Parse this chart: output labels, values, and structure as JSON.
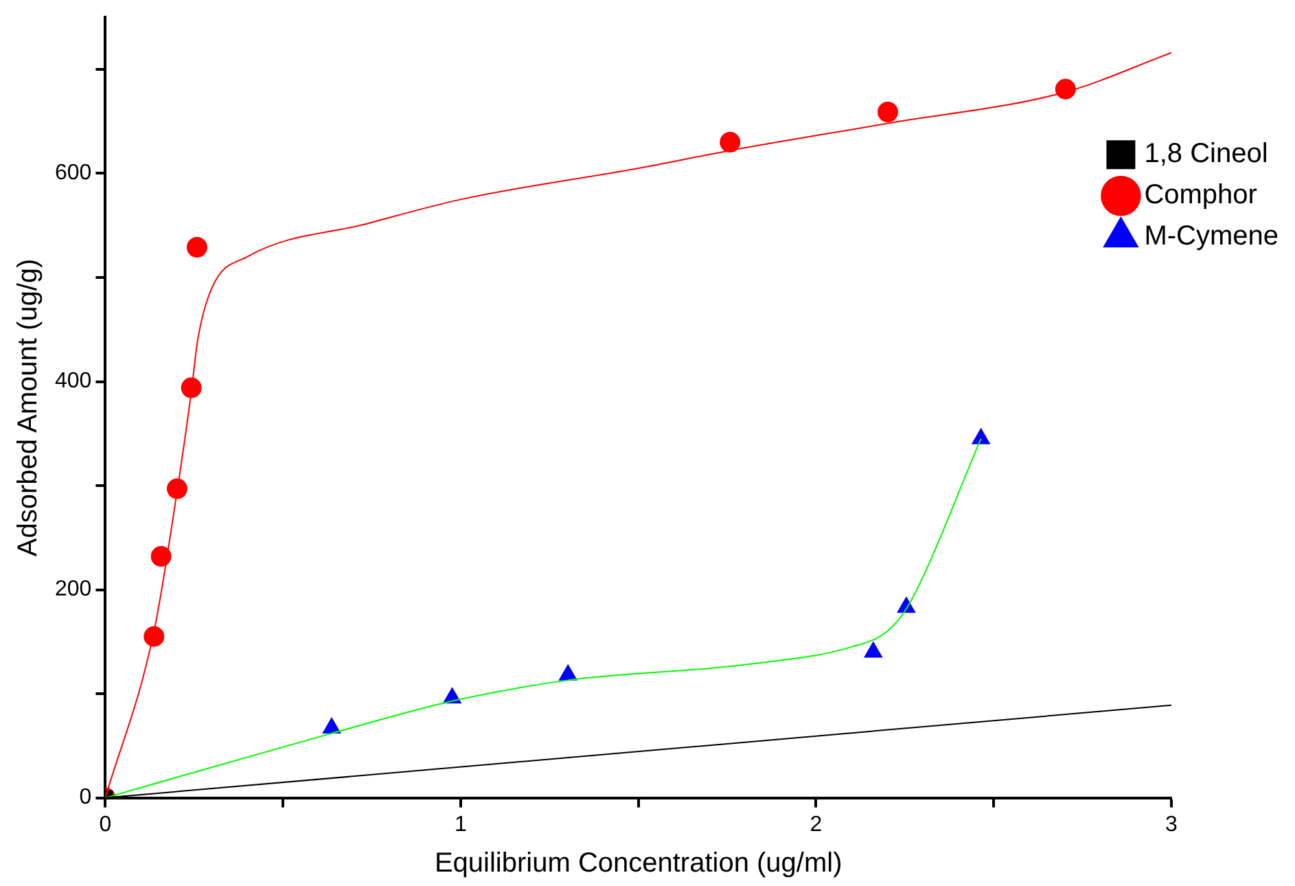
{
  "chart_data": {
    "type": "line",
    "xlabel": "Equilibrium Concentration (ug/ml)",
    "ylabel": "Adsorbed Amount (ug/g)",
    "xlim": [
      0,
      3
    ],
    "xticks": [
      0,
      {
        "value": 0.5,
        "label": null
      },
      1,
      {
        "value": 1.5,
        "label": null
      },
      2,
      {
        "value": 2.5,
        "label": null
      },
      3
    ],
    "ylim": [
      0,
      750
    ],
    "yticks": [
      0,
      {
        "value": 100,
        "label": null
      },
      200,
      {
        "value": 300,
        "label": null
      },
      400,
      {
        "value": 500,
        "label": null
      },
      600,
      {
        "value": 700,
        "label": null
      }
    ],
    "grid": false,
    "legend": "top right",
    "series": [
      {
        "type": "line",
        "color": "#000000",
        "marker": "none",
        "x": [
          0,
          3
        ],
        "values": [
          0,
          89
        ]
      },
      {
        "type": "line",
        "color": "#ff0000",
        "marker": "none",
        "x": [
          0,
          0.137,
          0.2,
          0.242,
          0.26,
          0.3,
          0.4,
          0.74,
          1,
          1.5,
          1.758,
          2.2,
          2.7,
          3
        ],
        "values": [
          0,
          160,
          290,
          390,
          440,
          490,
          520,
          552,
          575,
          605,
          622,
          648,
          678,
          716
        ]
      },
      {
        "type": "line",
        "color": "#00ff00",
        "marker": "none",
        "x": [
          0,
          0.637,
          0.976,
          1.302,
          1.8,
          2.1,
          2.2,
          2.26,
          2.464
        ],
        "values": [
          0,
          62,
          93,
          113,
          128,
          145,
          160,
          185,
          345
        ]
      },
      {
        "type": "scatter",
        "name": "1,8 Cineol",
        "color": "#000000",
        "marker": "square",
        "x": [
          0
        ],
        "values": [
          0
        ]
      },
      {
        "type": "scatter",
        "name": "Comphor",
        "color": "#ff0000",
        "marker": "circle",
        "x": [
          0,
          0.137,
          0.157,
          0.202,
          0.242,
          0.258,
          1.758,
          2.202,
          2.702
        ],
        "values": [
          0,
          155,
          232,
          297,
          394,
          529,
          630,
          659,
          681
        ]
      },
      {
        "type": "scatter",
        "name": "M-Cymene",
        "color": "#0000ff",
        "marker": "triangle",
        "x": [
          0,
          0.637,
          0.976,
          1.302,
          2.161,
          2.254,
          2.464
        ],
        "values": [
          0,
          67,
          96,
          118,
          140,
          183,
          345
        ]
      }
    ]
  }
}
